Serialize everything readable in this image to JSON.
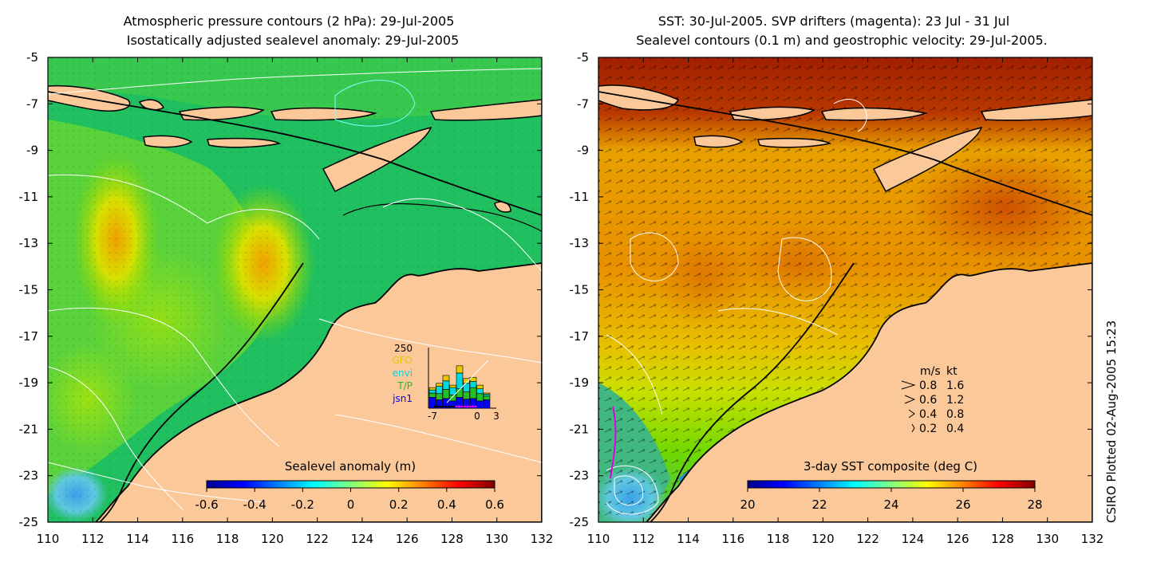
{
  "left_panel": {
    "title_line1": "Atmospheric pressure contours (2 hPa): 29-Jul-2005",
    "title_line2": "Isostatically adjusted sealevel anomaly: 29-Jul-2005",
    "colorbar_label": "Sealevel anomaly (m)",
    "colorbar_ticks": [
      "-0.6",
      "-0.4",
      "-0.2",
      "0",
      "0.2",
      "0.4",
      "0.6"
    ],
    "inset": {
      "ymax_label": "250",
      "legend": [
        {
          "label": "GFO",
          "color": "#e6c800"
        },
        {
          "label": "envi",
          "color": "#00d8e0"
        },
        {
          "label": "T/P",
          "color": "#22c022"
        },
        {
          "label": "jsn1",
          "color": "#0000ff"
        }
      ],
      "x_ticks": [
        "-7",
        "0",
        "3"
      ],
      "bars": [
        {
          "jsn1": 0.18,
          "tp": 0.07,
          "envi": 0.05,
          "gfo": 0.04
        },
        {
          "jsn1": 0.14,
          "tp": 0.1,
          "envi": 0.12,
          "gfo": 0.05
        },
        {
          "jsn1": 0.16,
          "tp": 0.15,
          "envi": 0.14,
          "gfo": 0.09
        },
        {
          "jsn1": 0.12,
          "tp": 0.1,
          "envi": 0.12,
          "gfo": 0.04
        },
        {
          "jsn1": 0.18,
          "tp": 0.14,
          "envi": 0.26,
          "gfo": 0.12
        },
        {
          "jsn1": 0.15,
          "tp": 0.12,
          "envi": 0.14,
          "gfo": 0.08
        },
        {
          "jsn1": 0.16,
          "tp": 0.18,
          "envi": 0.1,
          "gfo": 0.07
        },
        {
          "jsn1": 0.12,
          "tp": 0.12,
          "envi": 0.08,
          "gfo": 0.06
        },
        {
          "jsn1": 0.14,
          "tp": 0.06,
          "envi": 0.03,
          "gfo": 0.02
        }
      ]
    }
  },
  "right_panel": {
    "title_line1": "SST: 30-Jul-2005. SVP drifters (magenta): 23 Jul - 31 Jul",
    "title_line2": "Sealevel contours (0.1 m) and geostrophic velocity: 29-Jul-2005.",
    "colorbar_label": "3-day SST composite (deg C)",
    "colorbar_ticks": [
      "20",
      "22",
      "24",
      "26",
      "28"
    ],
    "velocity_legend": {
      "header_ms": "m/s",
      "header_kt": "kt",
      "rows": [
        {
          "ms": "0.8",
          "kt": "1.6"
        },
        {
          "ms": "0.6",
          "kt": "1.2"
        },
        {
          "ms": "0.4",
          "kt": "0.8"
        },
        {
          "ms": "0.2",
          "kt": "0.4"
        }
      ]
    }
  },
  "axes": {
    "x_ticks": [
      "110",
      "112",
      "114",
      "116",
      "118",
      "120",
      "122",
      "124",
      "126",
      "128",
      "130",
      "132"
    ],
    "y_ticks": [
      "-5",
      "-7",
      "-9",
      "-11",
      "-13",
      "-15",
      "-17",
      "-19",
      "-21",
      "-23",
      "-25"
    ],
    "x_range": [
      110,
      132
    ],
    "y_range": [
      -25,
      -5
    ]
  },
  "credit": "CSIRO Plotted 02-Aug-2005 15:23",
  "colors": {
    "land": "#fbc89a",
    "coast": "#000000",
    "contour": "#ffffff"
  }
}
